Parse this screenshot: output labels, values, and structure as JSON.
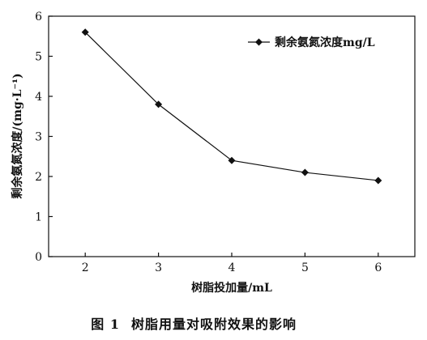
{
  "chart_data": {
    "type": "line",
    "x": [
      2,
      3,
      4,
      5,
      6
    ],
    "series": [
      {
        "name": "剩余氨氮浓度mg/L",
        "values": [
          5.6,
          3.8,
          2.4,
          2.1,
          1.9
        ]
      }
    ],
    "xlabel": "树脂投加量/mL",
    "ylabel": "剩余氨氮浓度/(mg·L⁻¹)",
    "xlim": [
      1.5,
      6.5
    ],
    "ylim": [
      0,
      6
    ],
    "xticks": [
      "2",
      "3",
      "4",
      "5",
      "6"
    ],
    "yticks": [
      "0",
      "1",
      "2",
      "3",
      "4",
      "5",
      "6"
    ],
    "legend_position": "top-right",
    "grid": false,
    "marker": "diamond",
    "line_color": "#111111"
  },
  "caption": {
    "label": "图 1",
    "text": "树脂用量对吸附效果的影响"
  }
}
